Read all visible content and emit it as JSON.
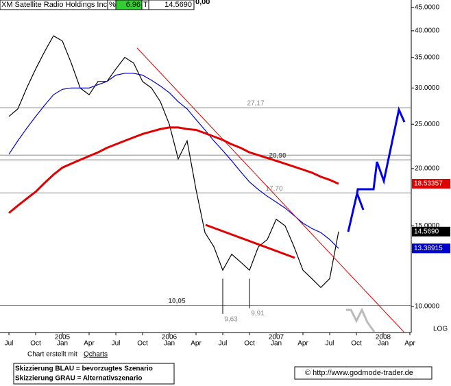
{
  "chart_data": {
    "type": "line",
    "title": "XM Satellite Radio Holdings Inc.",
    "header": {
      "pct_sign": "%",
      "change": "6.96",
      "flag": "T",
      "last": "14.5690",
      "extra": "0,00"
    },
    "x": [
      "2004-07",
      "2004-08",
      "2004-09",
      "2004-10",
      "2004-11",
      "2004-12",
      "2005-01",
      "2005-02",
      "2005-03",
      "2005-04",
      "2005-05",
      "2005-06",
      "2005-07",
      "2005-08",
      "2005-09",
      "2005-10",
      "2005-11",
      "2005-12",
      "2006-01",
      "2006-02",
      "2006-03",
      "2006-04",
      "2006-05",
      "2006-06",
      "2006-07",
      "2006-08",
      "2006-09",
      "2006-10",
      "2006-11",
      "2006-12",
      "2007-01",
      "2007-02",
      "2007-03",
      "2007-04",
      "2007-05",
      "2007-06",
      "2007-07",
      "2007-08"
    ],
    "series": [
      {
        "color": "#000000",
        "values": [
          26,
          27,
          30,
          33,
          36,
          39,
          38,
          34,
          30,
          29,
          31,
          31,
          33,
          35,
          34,
          31,
          30,
          28,
          25,
          21,
          23,
          18,
          14.5,
          13.5,
          12,
          13,
          12.5,
          12,
          13.5,
          14,
          15.5,
          15,
          13.5,
          12,
          11.5,
          11,
          11.5,
          14.569
        ],
        "last_label": "14.5690"
      },
      {
        "color": "#0000cc",
        "values": [
          21.5,
          23,
          24.5,
          26,
          27.5,
          29,
          29.8,
          30,
          30,
          30,
          30.5,
          31,
          32,
          32.3,
          32.3,
          32,
          31.2,
          30.3,
          29.3,
          28,
          27,
          25.6,
          24.3,
          23,
          21.9,
          20.8,
          19.7,
          18.7,
          18,
          17.4,
          16.9,
          16.4,
          15.8,
          15.2,
          14.8,
          14.5,
          14,
          13.38915
        ],
        "last_label": "13.38915"
      },
      {
        "color": "#e00000",
        "values": [
          16,
          16.6,
          17.2,
          17.8,
          18.6,
          19.4,
          20.1,
          20.5,
          20.9,
          21.3,
          21.7,
          22.2,
          22.6,
          23,
          23.4,
          23.8,
          24.1,
          24.4,
          24.6,
          24.6,
          24.4,
          24.3,
          23.9,
          23.5,
          23.1,
          22.6,
          22.2,
          21.7,
          21.4,
          21.1,
          20.8,
          20.5,
          20.2,
          19.9,
          19.6,
          19.2,
          18.9,
          18.53357
        ],
        "last_label": "18.53357"
      }
    ],
    "log_scale": true,
    "log_label": "LOG",
    "ylim": [
      8.77,
      46.7
    ],
    "yticks": [
      {
        "value": 10,
        "label": "10.0000"
      },
      {
        "value": 15,
        "label": "15.0000"
      },
      {
        "value": 20,
        "label": "20.0000"
      },
      {
        "value": 25,
        "label": "25.0000"
      },
      {
        "value": 30,
        "label": "30.0000"
      },
      {
        "value": 35,
        "label": "35.0000"
      },
      {
        "value": 40,
        "label": "40.0000"
      },
      {
        "value": 45,
        "label": "45.0000"
      }
    ],
    "xticks": [
      {
        "value": "2004-07",
        "label": "Jul"
      },
      {
        "value": "2004-10",
        "label": "Oct"
      },
      {
        "value": "2005-01",
        "label": "Jan"
      },
      {
        "value": "2005-04",
        "label": "Apr"
      },
      {
        "value": "2005-07",
        "label": "Jul"
      },
      {
        "value": "2005-10",
        "label": "Oct"
      },
      {
        "value": "2006-01",
        "label": "Jan"
      },
      {
        "value": "2006-04",
        "label": "Apr"
      },
      {
        "value": "2006-07",
        "label": "Jul"
      },
      {
        "value": "2006-10",
        "label": "Oct"
      },
      {
        "value": "2007-01",
        "label": "Jan"
      },
      {
        "value": "2007-04",
        "label": "Apr"
      },
      {
        "value": "2007-07",
        "label": "Jul"
      },
      {
        "value": "2007-10",
        "label": "Oct"
      },
      {
        "value": "2008-01",
        "label": "Jan"
      },
      {
        "value": "2008-04",
        "label": "Apr"
      }
    ],
    "year_labels": [
      {
        "value": "2005-01",
        "label": "2005"
      },
      {
        "value": "2006-01",
        "label": "2006"
      },
      {
        "value": "2007-01",
        "label": "2007"
      },
      {
        "value": "2008-01",
        "label": "2008"
      }
    ],
    "levels": [
      {
        "value": 27.17,
        "label": "27,17"
      },
      {
        "value": 20.9,
        "label": "20,90"
      },
      21.4,
      {
        "value": 17.7,
        "label": "17,70"
      },
      {
        "value": 10.05,
        "label": "10,05"
      }
    ],
    "lows": [
      {
        "x": "2006-07",
        "value": 9.63,
        "label": "9,63"
      },
      {
        "x": "2006-10",
        "value": 9.91,
        "label": "9,91"
      }
    ],
    "footer": {
      "credit_prefix": "Chart erstellt mit ",
      "credit_tool": "Qcharts",
      "legend_blue": "Skizzierung BLAU = bevorzugtes Szenario",
      "legend_gray": "Skizzierung GRAU = Alternativszenario",
      "source": "© http://www.godmode-trader.de"
    }
  }
}
